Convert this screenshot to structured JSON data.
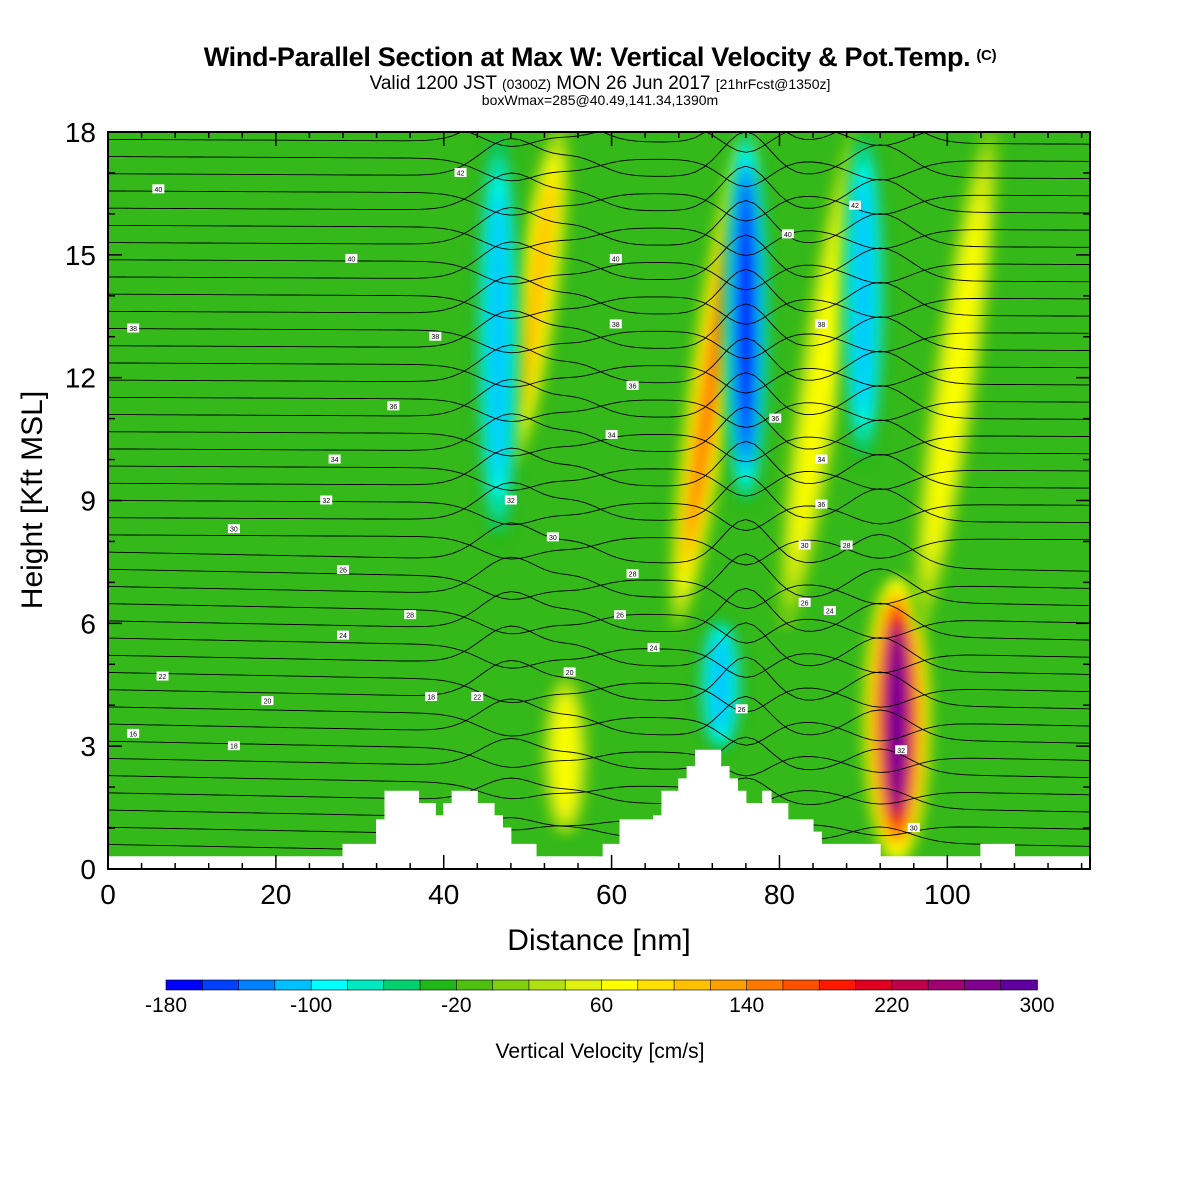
{
  "header": {
    "title": "Wind-Parallel Section at Max W: Vertical Velocity & Pot.Temp.",
    "copyright": "(C)",
    "valid_prefix": "Valid 1200 JST",
    "valid_utc": "(0300Z)",
    "valid_date": "MON 26 Jun 2017",
    "forecast": "[21hrFcst@1350z]",
    "boxline": "boxWmax=285@40.49,141.34,1390m"
  },
  "chart_data": {
    "type": "heatmap",
    "xlabel": "Distance [nm]",
    "ylabel": "Height [Kft MSL]",
    "xlim": [
      0,
      117
    ],
    "ylim": [
      0,
      18
    ],
    "x_ticks": [
      "0",
      "20",
      "40",
      "60",
      "80",
      "100"
    ],
    "x_tick_values": [
      0,
      20,
      40,
      60,
      80,
      100
    ],
    "y_ticks": [
      "0",
      "3",
      "6",
      "9",
      "12",
      "15",
      "18"
    ],
    "y_tick_values": [
      0,
      3,
      6,
      9,
      12,
      15,
      18
    ],
    "colorbar": {
      "title": "Vertical Velocity [cm/s]",
      "min": -180,
      "max": 300,
      "step": 20,
      "labels": [
        "-180",
        "-100",
        "-20",
        "60",
        "140",
        "220",
        "300"
      ],
      "label_values": [
        -180,
        -100,
        -20,
        60,
        140,
        220,
        300
      ],
      "colors": [
        "#0000ff",
        "#0040ff",
        "#0080ff",
        "#00c0ff",
        "#00ffff",
        "#00e8c0",
        "#00d070",
        "#20b818",
        "#50c010",
        "#80d010",
        "#b0e010",
        "#e0f010",
        "#ffff00",
        "#ffe000",
        "#ffc000",
        "#ffa000",
        "#ff7800",
        "#ff5000",
        "#ff1800",
        "#e00020",
        "#c00048",
        "#a00070",
        "#800090",
        "#6000a0"
      ]
    },
    "terrain": [
      [
        0,
        0.3
      ],
      [
        27,
        0.3
      ],
      [
        28,
        0.6
      ],
      [
        32,
        1.2
      ],
      [
        33,
        1.9
      ],
      [
        36,
        1.9
      ],
      [
        37,
        1.6
      ],
      [
        39,
        1.3
      ],
      [
        40,
        1.6
      ],
      [
        41,
        1.9
      ],
      [
        43,
        1.9
      ],
      [
        44,
        1.6
      ],
      [
        46,
        1.3
      ],
      [
        47,
        1.0
      ],
      [
        48,
        0.6
      ],
      [
        50,
        0.6
      ],
      [
        51,
        0.3
      ],
      [
        58,
        0.3
      ],
      [
        59,
        0.6
      ],
      [
        61,
        1.2
      ],
      [
        65,
        1.3
      ],
      [
        66,
        1.9
      ],
      [
        68,
        2.2
      ],
      [
        69,
        2.5
      ],
      [
        70,
        2.9
      ],
      [
        72,
        2.9
      ],
      [
        73,
        2.5
      ],
      [
        74,
        2.2
      ],
      [
        75,
        1.9
      ],
      [
        76,
        1.6
      ],
      [
        78,
        1.9
      ],
      [
        79,
        1.6
      ],
      [
        81,
        1.2
      ],
      [
        84,
        0.9
      ],
      [
        85,
        0.6
      ],
      [
        92,
        0.3
      ],
      [
        103,
        0.3
      ],
      [
        104,
        0.6
      ],
      [
        107,
        0.6
      ],
      [
        108,
        0.3
      ],
      [
        117,
        0.3
      ]
    ],
    "updrafts": [
      {
        "x": 94,
        "top": 7,
        "bottom": 0.3,
        "peak": 290
      },
      {
        "x": 72,
        "top": 18,
        "bottom": 6,
        "peak": 140
      },
      {
        "x": 54.5,
        "top": 4.5,
        "bottom": 1,
        "peak": 70
      },
      {
        "x": 51,
        "top": 18,
        "bottom": 10,
        "peak": 110
      },
      {
        "x": 85,
        "top": 18,
        "bottom": 6,
        "peak": 60
      },
      {
        "x": 101,
        "top": 18,
        "bottom": 6,
        "peak": 60
      }
    ],
    "downdrafts": [
      {
        "x": 46.5,
        "top": 18,
        "bottom": 8,
        "peak": -110
      },
      {
        "x": 76,
        "top": 18,
        "bottom": 9,
        "peak": -180
      },
      {
        "x": 90,
        "top": 18,
        "bottom": 10,
        "peak": -100
      },
      {
        "x": 73,
        "top": 6,
        "bottom": 3,
        "peak": -100
      }
    ],
    "contour_labels": [
      {
        "text": "16",
        "x": 3,
        "y": 3.3
      },
      {
        "text": "18",
        "x": 15,
        "y": 3.0
      },
      {
        "text": "20",
        "x": 19,
        "y": 4.1
      },
      {
        "text": "22",
        "x": 6.5,
        "y": 4.7
      },
      {
        "text": "24",
        "x": 28,
        "y": 5.7
      },
      {
        "text": "26",
        "x": 28,
        "y": 7.3
      },
      {
        "text": "28",
        "x": 36,
        "y": 6.2
      },
      {
        "text": "30",
        "x": 15,
        "y": 8.3
      },
      {
        "text": "32",
        "x": 26,
        "y": 9.0
      },
      {
        "text": "34",
        "x": 27,
        "y": 10.0
      },
      {
        "text": "36",
        "x": 34,
        "y": 11.3
      },
      {
        "text": "38",
        "x": 3,
        "y": 13.2
      },
      {
        "text": "38",
        "x": 39,
        "y": 13.0
      },
      {
        "text": "40",
        "x": 29,
        "y": 14.9
      },
      {
        "text": "40",
        "x": 6,
        "y": 16.6
      },
      {
        "text": "42",
        "x": 42,
        "y": 17.0
      },
      {
        "text": "18",
        "x": 38.5,
        "y": 4.2
      },
      {
        "text": "22",
        "x": 44,
        "y": 4.2
      },
      {
        "text": "20",
        "x": 55,
        "y": 4.8
      },
      {
        "text": "26",
        "x": 61,
        "y": 6.2
      },
      {
        "text": "24",
        "x": 65,
        "y": 5.4
      },
      {
        "text": "28",
        "x": 62.5,
        "y": 7.2
      },
      {
        "text": "30",
        "x": 53,
        "y": 8.1
      },
      {
        "text": "32",
        "x": 48,
        "y": 9.0
      },
      {
        "text": "34",
        "x": 60,
        "y": 10.6
      },
      {
        "text": "36",
        "x": 62.5,
        "y": 11.8
      },
      {
        "text": "38",
        "x": 60.5,
        "y": 13.3
      },
      {
        "text": "40",
        "x": 60.5,
        "y": 14.9
      },
      {
        "text": "36",
        "x": 79.5,
        "y": 11.0
      },
      {
        "text": "34",
        "x": 85,
        "y": 10.0
      },
      {
        "text": "36",
        "x": 85,
        "y": 8.9
      },
      {
        "text": "30",
        "x": 83,
        "y": 7.9
      },
      {
        "text": "28",
        "x": 88,
        "y": 7.9
      },
      {
        "text": "26",
        "x": 83,
        "y": 6.5
      },
      {
        "text": "24",
        "x": 86,
        "y": 6.3
      },
      {
        "text": "38",
        "x": 85,
        "y": 13.3
      },
      {
        "text": "40",
        "x": 81,
        "y": 15.5
      },
      {
        "text": "42",
        "x": 89,
        "y": 16.2
      },
      {
        "text": "26",
        "x": 75.5,
        "y": 3.9
      },
      {
        "text": "32",
        "x": 94.5,
        "y": 2.9
      },
      {
        "text": "30",
        "x": 96,
        "y": 1.0
      }
    ]
  }
}
